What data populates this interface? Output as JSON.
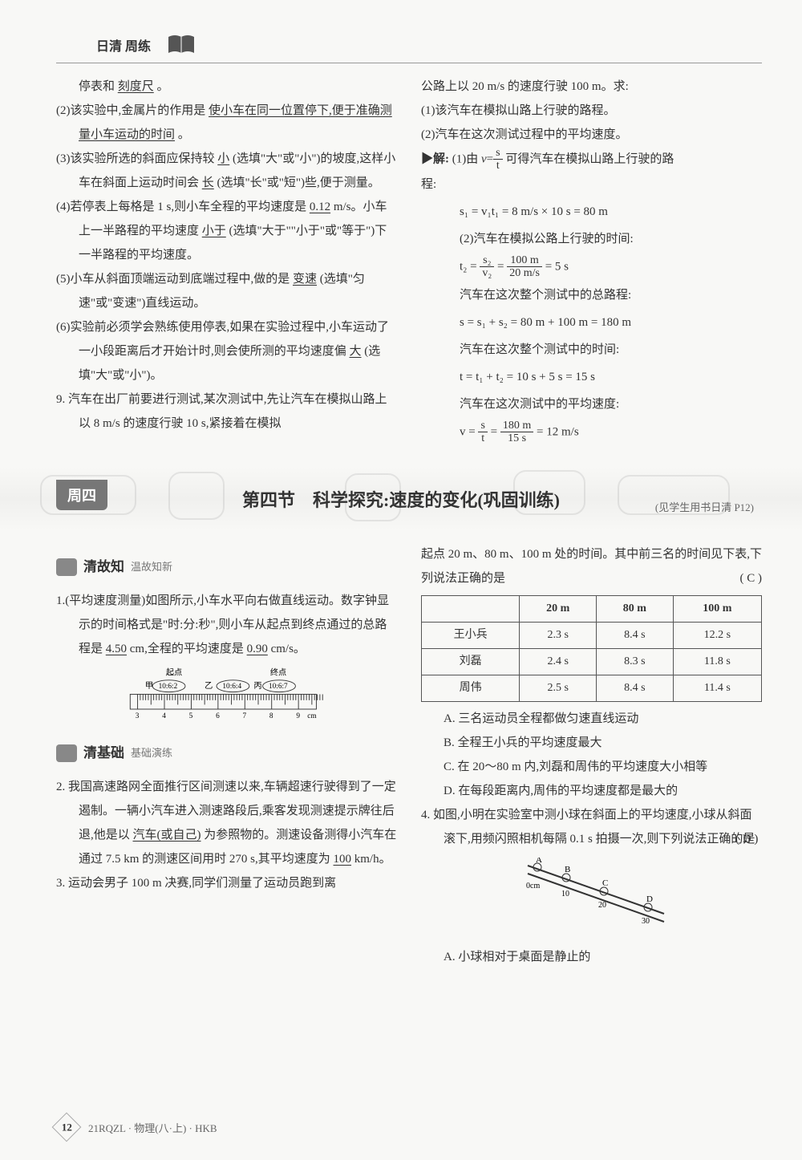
{
  "header": {
    "title": "日清 周练"
  },
  "colA": {
    "l1": "停表和",
    "l1u": "刻度尺",
    "l1end": "。",
    "p2a": "(2)该实验中,金属片的作用是",
    "p2u": "使小车在同一位置停下,便于准确测量小车运动的时间",
    "p2end": "。",
    "p3a": "(3)该实验所选的斜面应保持较",
    "p3u1": "小",
    "p3b": "(选填\"大\"或\"小\")的坡度,这样小车在斜面上运动时间会",
    "p3u2": "长",
    "p3c": "(选填\"长\"或\"短\")些,便于测量。",
    "p4a": "(4)若停表上每格是 1 s,则小车全程的平均速度是",
    "p4u1": "0.12",
    "p4b": "m/s。小车上一半路程的平均速度",
    "p4u2": "小于",
    "p4c": "(选填\"大于\"\"小于\"或\"等于\")下一半路程的平均速度。",
    "p5a": "(5)小车从斜面顶端运动到底端过程中,做的是",
    "p5u": "变速",
    "p5b": "(选填\"匀速\"或\"变速\")直线运动。",
    "p6a": "(6)实验前必须学会熟练使用停表,如果在实验过程中,小车运动了一小段距离后才开始计时,则会使所测的平均速度偏",
    "p6u": "大",
    "p6b": "(选填\"大\"或\"小\")。",
    "q9": "9. 汽车在出厂前要进行测试,某次测试中,先让汽车在模拟山路上以 8 m/s 的速度行驶 10 s,紧接着在模拟"
  },
  "colB": {
    "l1": "公路上以 20 m/s 的速度行驶 100 m。求:",
    "l2": "(1)该汽车在模拟山路上行驶的路程。",
    "l3": "(2)汽车在这次测试过程中的平均速度。",
    "solLabel": "▶解:",
    "sol1a": "(1)由",
    "sol1b": "可得汽车在模拟山路上行驶的路",
    "sol1c": "程:",
    "eq1": "s₁ = v₁t₁ = 8 m/s × 10 s = 80 m",
    "sol2": "(2)汽车在模拟公路上行驶的时间:",
    "eq2a": "t₂ =",
    "eq2b": "= 5 s",
    "sol3": "汽车在这次整个测试中的总路程:",
    "eq3": "s = s₁ + s₂ = 80 m + 100 m = 180 m",
    "sol4": "汽车在这次整个测试中的时间:",
    "eq4": "t = t₁ + t₂ = 10 s + 5 s = 15 s",
    "sol5": "汽车在这次测试中的平均速度:",
    "eq5a": "v =",
    "eq5b": "= 12 m/s",
    "frac_v": {
      "n": "s",
      "d": "t"
    },
    "frac_t2": {
      "n": "s₂",
      "d": "v₂"
    },
    "frac_t2v": {
      "n": "100 m",
      "d": "20 m/s"
    },
    "frac_v2": {
      "n": "s",
      "d": "t"
    },
    "frac_v2v": {
      "n": "180 m",
      "d": "15 s"
    }
  },
  "section": {
    "day": "周四",
    "title": "第四节　科学探究:速度的变化(巩固训练)",
    "note": "(见学生用书日清 P12)"
  },
  "subA": {
    "head1": "清故知",
    "head1desc": "温故知新",
    "q1a": "1.(平均速度测量)如图所示,小车水平向右做直线运动。数字钟显示的时间格式是\"时:分:秒\",则小车从起点到终点通过的总路程是",
    "q1u1": "4.50",
    "q1b": "cm,全程的平均速度是",
    "q1u2": "0.90",
    "q1c": "cm/s。",
    "rulerLabels": {
      "start": "起点",
      "end": "终点",
      "jia": "甲",
      "yi": "乙",
      "bing": "丙",
      "t1": "10:6:2",
      "t2": "10:6:4",
      "t3": "10:6:7",
      "unit": "cm",
      "ticks": [
        "3",
        "4",
        "5",
        "6",
        "7",
        "8",
        "9"
      ]
    },
    "head2": "清基础",
    "head2desc": "基础演练",
    "q2a": "2. 我国高速路网全面推行区间测速以来,车辆超速行驶得到了一定遏制。一辆小汽车进入测速路段后,乘客发现测速提示牌往后退,他是以",
    "q2u1": "汽车(或自己)",
    "q2b": "为参照物的。测速设备测得小汽车在通过 7.5 km 的测速区间用时 270 s,其平均速度为",
    "q2u2": "100",
    "q2c": "km/h。",
    "q3": "3. 运动会男子 100 m 决赛,同学们测量了运动员跑到离"
  },
  "subB": {
    "tblIntro1": "起点 20 m、80 m、100 m 处的时间。其中前三名的时间见下表,下列说法正确的是",
    "answer3": "( C )",
    "table": {
      "headers": [
        "",
        "20 m",
        "80 m",
        "100 m"
      ],
      "rows": [
        [
          "王小兵",
          "2.3 s",
          "8.4 s",
          "12.2 s"
        ],
        [
          "刘磊",
          "2.4 s",
          "8.3 s",
          "11.8 s"
        ],
        [
          "周伟",
          "2.5 s",
          "8.4 s",
          "11.4 s"
        ]
      ]
    },
    "optA": "A. 三名运动员全程都做匀速直线运动",
    "optB": "B. 全程王小兵的平均速度最大",
    "optC": "C. 在 20～80 m 内,刘磊和周伟的平均速度大小相等",
    "optD": "D. 在每段距离内,周伟的平均速度都是最大的",
    "q4": "4. 如图,小明在实验室中测小球在斜面上的平均速度,小球从斜面滚下,用频闪照相机每隔 0.1 s 拍摄一次,则下列说法正确的是",
    "answer4": "( D )",
    "diagram": {
      "A": "A",
      "B": "B",
      "C": "C",
      "D": "D",
      "zero": "0cm",
      "t10": "10",
      "t20": "20",
      "t30": "30"
    },
    "opt4A": "A. 小球相对于桌面是静止的"
  },
  "footer": {
    "page": "12",
    "code": "21RQZL · 物理(八·上) · HKB"
  }
}
